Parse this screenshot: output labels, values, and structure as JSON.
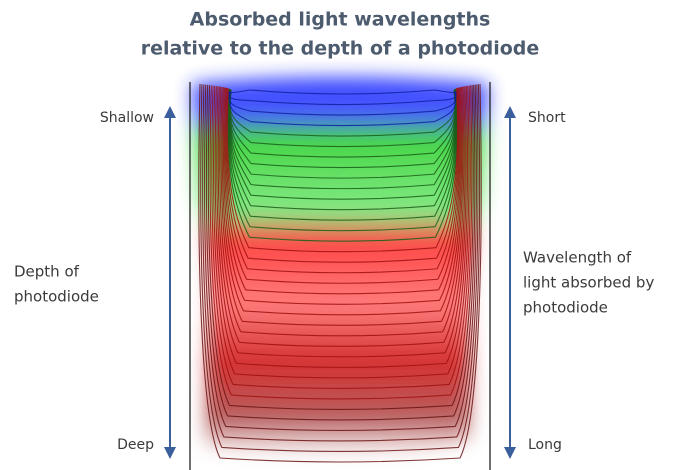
{
  "title": {
    "lines": [
      "Absorbed light wavelengths",
      "relative to the depth of a photodiode"
    ]
  },
  "left_axis": {
    "top": "Shallow",
    "bottom": "Deep",
    "label": [
      "Depth of",
      "photodiode"
    ]
  },
  "right_axis": {
    "top": "Short",
    "bottom": "Long",
    "label": [
      "Wavelength of",
      "light absorbed by",
      "photodiode"
    ]
  }
}
